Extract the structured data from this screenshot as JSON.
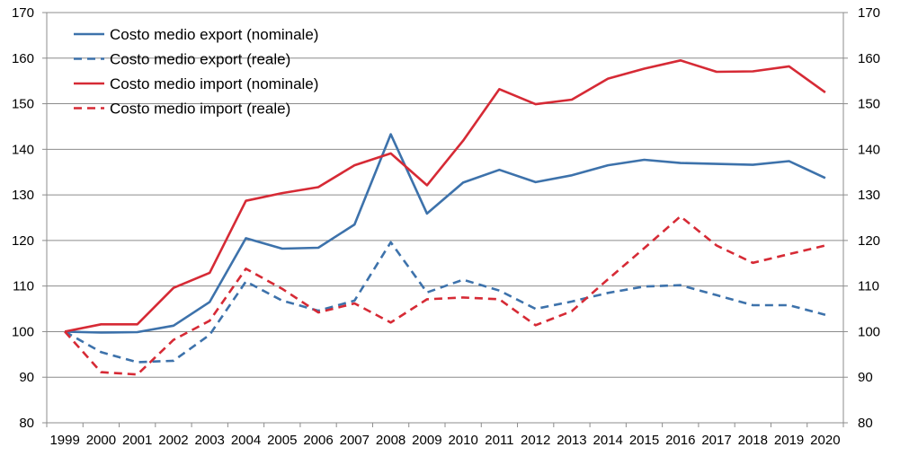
{
  "chart_data": {
    "type": "line",
    "title": "",
    "xlabel": "",
    "ylabel": "",
    "ylim": [
      80,
      170
    ],
    "y_ticks": [
      "80",
      "90",
      "100",
      "110",
      "120",
      "130",
      "140",
      "150",
      "160",
      "170"
    ],
    "secondary_y_ticks": [
      "80",
      "90",
      "100",
      "110",
      "120",
      "130",
      "140",
      "150",
      "160",
      "170"
    ],
    "grid": "horizontal",
    "legend_position": "top-left",
    "categories": [
      "1999",
      "2000",
      "2001",
      "2002",
      "2003",
      "2004",
      "2005",
      "2006",
      "2007",
      "2008",
      "2009",
      "2010",
      "2011",
      "2012",
      "2013",
      "2014",
      "2015",
      "2016",
      "2017",
      "2018",
      "2019",
      "2020"
    ],
    "series": [
      {
        "name": "Costo medio export (nominale)",
        "color": "#3d72ab",
        "dash": "solid",
        "values": [
          100.0,
          99.8,
          99.9,
          101.3,
          106.5,
          120.5,
          118.2,
          118.4,
          123.5,
          143.3,
          125.9,
          132.7,
          135.5,
          132.8,
          134.3,
          136.5,
          137.7,
          137.0,
          136.8,
          136.6,
          137.4,
          133.7
        ]
      },
      {
        "name": "Costo medio export (reale)",
        "color": "#3d72ab",
        "dash": "dashed",
        "values": [
          100.0,
          95.5,
          93.3,
          93.6,
          99.3,
          111.0,
          106.8,
          104.6,
          106.8,
          119.6,
          108.6,
          111.4,
          109.0,
          105.0,
          106.6,
          108.5,
          109.9,
          110.2,
          108.0,
          105.8,
          105.8,
          103.7
        ]
      },
      {
        "name": "Costo medio import (nominale)",
        "color": "#d62a35",
        "dash": "solid",
        "values": [
          100.0,
          101.6,
          101.6,
          109.6,
          112.9,
          128.7,
          130.4,
          131.7,
          136.5,
          139.1,
          132.1,
          141.9,
          153.2,
          149.9,
          150.9,
          155.5,
          157.7,
          159.5,
          157.0,
          157.1,
          158.2,
          152.5
        ]
      },
      {
        "name": "Costo medio import (reale)",
        "color": "#d62a35",
        "dash": "dashed",
        "values": [
          100.0,
          91.1,
          90.6,
          98.2,
          102.4,
          113.8,
          109.4,
          104.2,
          106.2,
          102.0,
          107.1,
          107.5,
          107.1,
          101.4,
          104.5,
          111.5,
          118.3,
          125.3,
          118.9,
          115.1,
          117.0,
          118.9
        ]
      }
    ]
  }
}
